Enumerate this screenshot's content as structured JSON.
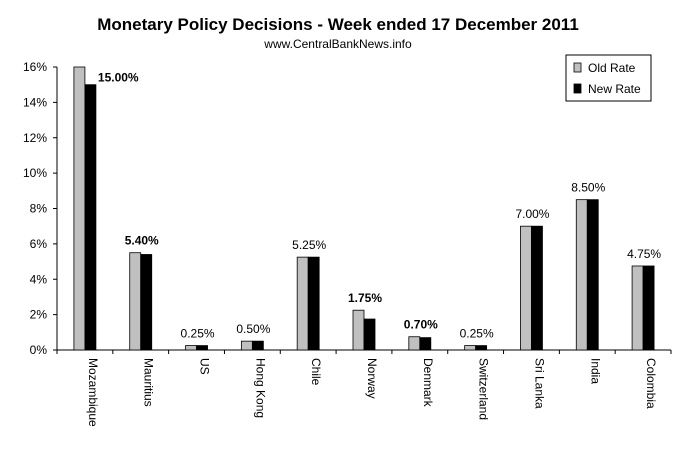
{
  "chart_data": {
    "type": "bar",
    "title": "Monetary Policy Decisions - Week ended  17 December 2011",
    "subtitle": "www.CentralBankNews.info",
    "xlabel": "",
    "ylabel": "",
    "ylim": [
      0,
      16
    ],
    "yticks": [
      "0%",
      "2%",
      "4%",
      "6%",
      "8%",
      "10%",
      "12%",
      "14%",
      "16%"
    ],
    "grid": false,
    "legend_position": "top-right",
    "categories": [
      "Mozambique",
      "Mauritius",
      "US",
      "Hong Kong",
      "Chile",
      "Norway",
      "Denmark",
      "Switzerland",
      "Sri Lanka",
      "India",
      "Colombia"
    ],
    "series": [
      {
        "name": "Old Rate",
        "color": "#c0c0c0",
        "values": [
          16.0,
          5.5,
          0.25,
          0.5,
          5.25,
          2.25,
          0.75,
          0.25,
          7.0,
          8.5,
          4.75
        ]
      },
      {
        "name": "New Rate",
        "color": "#000000",
        "values": [
          15.0,
          5.4,
          0.25,
          0.5,
          5.25,
          1.75,
          0.7,
          0.25,
          7.0,
          8.5,
          4.75
        ]
      }
    ],
    "data_labels": [
      {
        "text": "15.00%",
        "bold": true
      },
      {
        "text": "5.40%",
        "bold": true
      },
      {
        "text": "0.25%",
        "bold": false
      },
      {
        "text": "0.50%",
        "bold": false
      },
      {
        "text": "5.25%",
        "bold": false
      },
      {
        "text": "1.75%",
        "bold": true
      },
      {
        "text": "0.70%",
        "bold": true
      },
      {
        "text": "0.25%",
        "bold": false
      },
      {
        "text": "7.00%",
        "bold": false
      },
      {
        "text": "8.50%",
        "bold": false
      },
      {
        "text": "4.75%",
        "bold": false
      }
    ]
  }
}
